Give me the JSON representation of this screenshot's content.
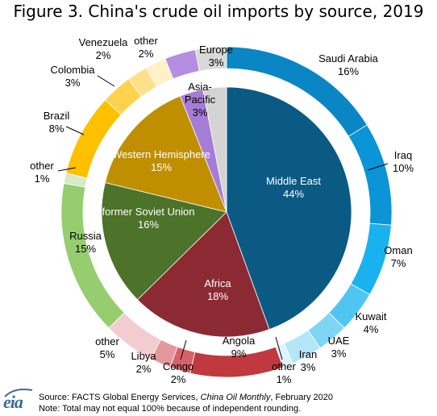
{
  "page": {
    "title": "Figure 3. China's crude oil imports by source, 2019",
    "source_prefix": "Source: FACTS Global Energy Services, ",
    "source_italic": "China Oil Monthly",
    "source_suffix": ", February 2020",
    "note": "Note: Total may not equal 100% because of independent rounding.",
    "logo": "eia"
  },
  "chart_data": {
    "type": "pie",
    "subtype": "nested donut",
    "title": "Figure 3. China's crude oil imports by source, 2019",
    "inner": [
      {
        "label": "Middle East",
        "value": 44,
        "value_label": "44%",
        "color": "#0b5a84",
        "text_color": "#ffffff"
      },
      {
        "label": "Africa",
        "value": 18,
        "value_label": "18%",
        "color": "#8c2a34",
        "text_color": "#ffffff"
      },
      {
        "label": "former Soviet Union",
        "value": 16,
        "value_label": "16%",
        "color": "#4d7229",
        "text_color": "#ffffff"
      },
      {
        "label": "Western Hemisphere",
        "value": 15,
        "value_label": "15%",
        "color": "#bf8f00",
        "text_color": "#ffffff"
      },
      {
        "label": "Asia-Pacific",
        "value": 3,
        "value_label": "3%",
        "color": "#a67dd6",
        "text_color": "#000000"
      },
      {
        "label": "Europe",
        "value": 3,
        "value_label": "3%",
        "color": "#d4d4d4",
        "text_color": "#000000"
      }
    ],
    "outer": [
      {
        "label": "Saudi Arabia",
        "value": 16,
        "value_label": "16%",
        "color": "#0a86c4"
      },
      {
        "label": "Iraq",
        "value": 10,
        "value_label": "10%",
        "color": "#0b94d6"
      },
      {
        "label": "Oman",
        "value": 7,
        "value_label": "7%",
        "color": "#1ab2ee"
      },
      {
        "label": "Kuwait",
        "value": 4,
        "value_label": "4%",
        "color": "#4fc6f1"
      },
      {
        "label": "UAE",
        "value": 3,
        "value_label": "3%",
        "color": "#7fd5f4"
      },
      {
        "label": "Iran",
        "value": 3,
        "value_label": "3%",
        "color": "#b2e6f8"
      },
      {
        "label": "other",
        "value": 1,
        "value_label": "1%",
        "color": "#def3fb"
      },
      {
        "label": "Angola",
        "value": 9,
        "value_label": "9%",
        "color": "#c0393f"
      },
      {
        "label": "Congo",
        "value": 2,
        "value_label": "2%",
        "color": "#d4626a"
      },
      {
        "label": "Libya",
        "value": 2,
        "value_label": "2%",
        "color": "#e3989c"
      },
      {
        "label": "other",
        "value": 5,
        "value_label": "5%",
        "color": "#f2ccd0"
      },
      {
        "label": "Russia",
        "value": 15,
        "value_label": "15%",
        "color": "#95cd6f"
      },
      {
        "label": "other",
        "value": 1,
        "value_label": "1%",
        "color": "#d6ebc6"
      },
      {
        "label": "Brazil",
        "value": 8,
        "value_label": "8%",
        "color": "#ffc000"
      },
      {
        "label": "Colombia",
        "value": 3,
        "value_label": "3%",
        "color": "#ffd24d"
      },
      {
        "label": "Venezuela",
        "value": 2,
        "value_label": "2%",
        "color": "#ffe08a"
      },
      {
        "label": "other",
        "value": 2,
        "value_label": "2%",
        "color": "#fff0c6"
      },
      {
        "label": "Asia-Pacific",
        "value": 3,
        "value_label": "",
        "color": "#b48ee0"
      },
      {
        "label": "Europe",
        "value": 3,
        "value_label": "",
        "color": "#d9d9d9"
      }
    ],
    "start_angle": "12 o'clock",
    "direction": "clockwise",
    "legend": "none"
  }
}
